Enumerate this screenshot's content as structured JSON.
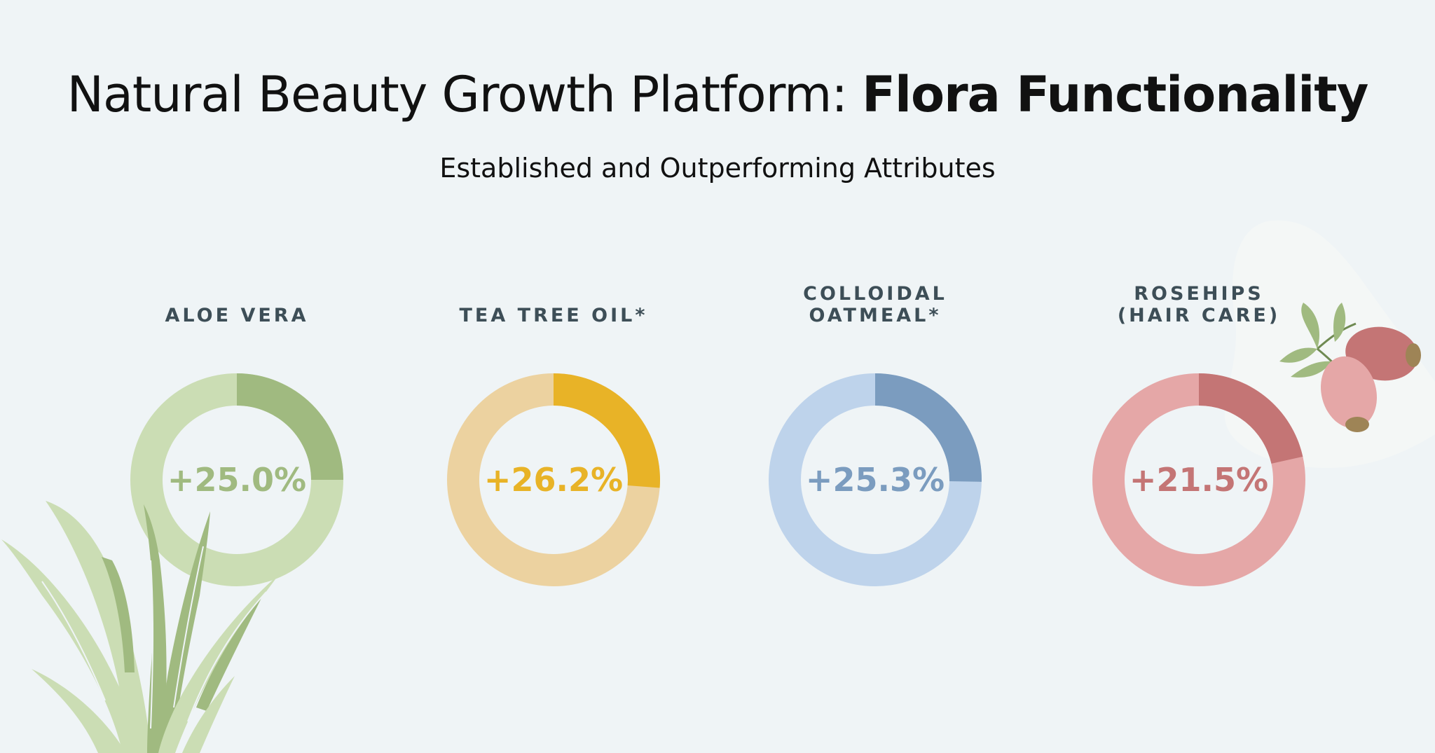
{
  "title": {
    "regular": "Natural Beauty Growth Platform: ",
    "bold": "Flora Functionality"
  },
  "subtitle": "Established and Outperforming Attributes",
  "chart_data": {
    "type": "pie",
    "variant": "donut",
    "title": "Natural Beauty Growth Platform: Flora Functionality",
    "subtitle": "Established and Outperforming Attributes",
    "items": [
      {
        "label_lines": [
          "ALOE VERA"
        ],
        "value": 25.0,
        "display": "+25.0%",
        "color": "#a0ba80",
        "track_color": "#cbddb4"
      },
      {
        "label_lines": [
          "TEA TREE OIL*"
        ],
        "value": 26.2,
        "display": "+26.2%",
        "color": "#e8b327",
        "track_color": "#ecd2a0"
      },
      {
        "label_lines": [
          "COLLOIDAL",
          "OATMEAL*"
        ],
        "value": 25.3,
        "display": "+25.3%",
        "color": "#7b9cbf",
        "track_color": "#bed3eb"
      },
      {
        "label_lines": [
          "ROSEHIPS",
          "(HAIR CARE)"
        ],
        "value": 21.5,
        "display": "+21.5%",
        "color": "#c47575",
        "track_color": "#e5a7a7"
      }
    ]
  },
  "decorations": {
    "left": "aloe-plant-illustration",
    "right": "rosehip-berries-illustration"
  }
}
